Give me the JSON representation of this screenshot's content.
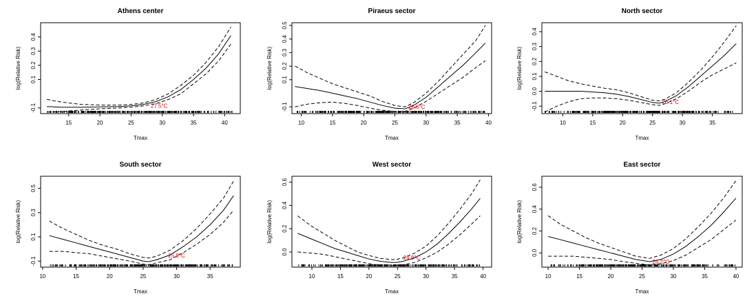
{
  "chart_data": [
    {
      "type": "line",
      "title": "Athens center",
      "xlabel": "Tmax",
      "ylabel": "log(Relative Risk)",
      "xlim": [
        10.5,
        42.5
      ],
      "ylim": [
        -0.14,
        0.5
      ],
      "xticks": [
        15,
        20,
        25,
        30,
        35,
        40
      ],
      "yticks": [
        -0.1,
        0.1,
        0.2,
        0.3,
        0.4
      ],
      "grid": false,
      "annotation": {
        "text": "27.5°C",
        "x": 29.5,
        "y": -0.098,
        "color": "#e00000"
      },
      "rug": {
        "from": 11.5,
        "to": 41.2
      },
      "series": [
        {
          "style": "solid",
          "x": [
            11.5,
            14,
            17,
            20,
            23,
            25,
            27,
            29,
            31,
            33,
            35,
            37,
            39,
            41
          ],
          "y": [
            -0.09,
            -0.095,
            -0.095,
            -0.093,
            -0.09,
            -0.085,
            -0.075,
            -0.055,
            -0.02,
            0.03,
            0.1,
            0.18,
            0.28,
            0.41
          ]
        },
        {
          "style": "dashed",
          "x": [
            11.5,
            14,
            17,
            20,
            23,
            25,
            27,
            29,
            31,
            33,
            35,
            37,
            39,
            41
          ],
          "y": [
            -0.04,
            -0.06,
            -0.075,
            -0.08,
            -0.08,
            -0.075,
            -0.065,
            -0.04,
            0.0,
            0.06,
            0.13,
            0.22,
            0.33,
            0.47
          ]
        },
        {
          "style": "dashed",
          "x": [
            11.5,
            14,
            17,
            20,
            23,
            25,
            27,
            29,
            31,
            33,
            35,
            37,
            39,
            41
          ],
          "y": [
            -0.13,
            -0.125,
            -0.115,
            -0.106,
            -0.1,
            -0.095,
            -0.085,
            -0.07,
            -0.04,
            0.0,
            0.07,
            0.14,
            0.23,
            0.35
          ]
        }
      ]
    },
    {
      "type": "line",
      "title": "Piraeus sector",
      "xlabel": "Tmax",
      "ylabel": "log(Relative Risk)",
      "xlim": [
        8.5,
        40.5
      ],
      "ylim": [
        -0.15,
        0.52
      ],
      "xticks": [
        10,
        15,
        20,
        25,
        30,
        35,
        40
      ],
      "yticks": [
        -0.1,
        0.1,
        0.2,
        0.3,
        0.4,
        0.5
      ],
      "grid": false,
      "annotation": {
        "text": "26.6°C",
        "x": 28.5,
        "y": -0.115,
        "color": "#e00000"
      },
      "rug": {
        "from": 9,
        "to": 39.5
      },
      "series": [
        {
          "style": "solid",
          "x": [
            9,
            11,
            13,
            15,
            17,
            19,
            21,
            23,
            25,
            26.6,
            28,
            30,
            32,
            34,
            36,
            38,
            39.5
          ],
          "y": [
            0.05,
            0.035,
            0.02,
            0.0,
            -0.02,
            -0.04,
            -0.065,
            -0.09,
            -0.11,
            -0.115,
            -0.09,
            -0.03,
            0.05,
            0.13,
            0.21,
            0.3,
            0.37
          ]
        },
        {
          "style": "dashed",
          "x": [
            9,
            11,
            13,
            15,
            17,
            19,
            21,
            23,
            25,
            26.6,
            28,
            30,
            32,
            34,
            36,
            38,
            39.5
          ],
          "y": [
            0.2,
            0.15,
            0.11,
            0.07,
            0.04,
            0.01,
            -0.02,
            -0.06,
            -0.09,
            -0.1,
            -0.07,
            0.0,
            0.09,
            0.19,
            0.29,
            0.39,
            0.5
          ]
        },
        {
          "style": "dashed",
          "x": [
            9,
            11,
            13,
            15,
            17,
            19,
            21,
            23,
            25,
            26.6,
            28,
            30,
            32,
            34,
            36,
            38,
            39.5
          ],
          "y": [
            -0.1,
            -0.08,
            -0.07,
            -0.065,
            -0.075,
            -0.09,
            -0.11,
            -0.125,
            -0.135,
            -0.135,
            -0.11,
            -0.06,
            0.0,
            0.06,
            0.12,
            0.19,
            0.24
          ]
        }
      ]
    },
    {
      "type": "line",
      "title": "North sector",
      "xlabel": "Tmax",
      "ylabel": "log(Relative Risk)",
      "xlim": [
        6.5,
        40
      ],
      "ylim": [
        -0.15,
        0.46
      ],
      "xticks": [
        10,
        15,
        20,
        25,
        30,
        35
      ],
      "yticks": [
        -0.1,
        0.0,
        0.1,
        0.2,
        0.3,
        0.4
      ],
      "grid": false,
      "annotation": {
        "text": "26.1°C",
        "x": 28,
        "y": -0.085,
        "color": "#e00000"
      },
      "rug": {
        "from": 7,
        "to": 39
      },
      "series": [
        {
          "style": "solid",
          "x": [
            7,
            9,
            11,
            13,
            15,
            17,
            19,
            21,
            23,
            25,
            26.1,
            27,
            29,
            31,
            33,
            35,
            37,
            39
          ],
          "y": [
            0.0,
            0.0,
            0.0,
            0.0,
            -0.005,
            -0.01,
            -0.02,
            -0.035,
            -0.055,
            -0.075,
            -0.08,
            -0.07,
            -0.03,
            0.03,
            0.1,
            0.17,
            0.24,
            0.32
          ]
        },
        {
          "style": "dashed",
          "x": [
            7,
            9,
            11,
            13,
            15,
            17,
            19,
            21,
            23,
            25,
            26.1,
            27,
            29,
            31,
            33,
            35,
            37,
            39
          ],
          "y": [
            0.13,
            0.1,
            0.07,
            0.05,
            0.035,
            0.02,
            0.01,
            -0.01,
            -0.035,
            -0.06,
            -0.065,
            -0.055,
            -0.01,
            0.06,
            0.14,
            0.23,
            0.33,
            0.44
          ]
        },
        {
          "style": "dashed",
          "x": [
            7,
            9,
            11,
            13,
            15,
            17,
            19,
            21,
            23,
            25,
            26.1,
            27,
            29,
            31,
            33,
            35,
            37,
            39
          ],
          "y": [
            -0.14,
            -0.1,
            -0.07,
            -0.05,
            -0.045,
            -0.045,
            -0.05,
            -0.06,
            -0.075,
            -0.09,
            -0.095,
            -0.085,
            -0.05,
            0.0,
            0.06,
            0.11,
            0.15,
            0.19
          ]
        }
      ]
    },
    {
      "type": "line",
      "title": "South sector",
      "xlabel": "Tmax",
      "ylabel": "log(Relative Risk)",
      "xlim": [
        9.7,
        39.5
      ],
      "ylim": [
        -0.15,
        0.6
      ],
      "xticks": [
        10,
        15,
        20,
        25,
        30,
        35
      ],
      "yticks": [
        -0.1,
        0.1,
        0.3,
        0.5
      ],
      "grid": false,
      "annotation": {
        "text": "25.8°C",
        "x": 30,
        "y": -0.07,
        "color": "#e00000"
      },
      "rug": {
        "from": 11,
        "to": 38.5
      },
      "series": [
        {
          "style": "solid",
          "x": [
            11,
            13,
            15,
            17,
            19,
            21,
            23,
            25,
            25.8,
            27,
            29,
            31,
            33,
            35,
            37,
            38.5
          ],
          "y": [
            0.11,
            0.08,
            0.05,
            0.02,
            -0.01,
            -0.04,
            -0.07,
            -0.1,
            -0.105,
            -0.09,
            -0.05,
            0.02,
            0.1,
            0.2,
            0.32,
            0.44
          ]
        },
        {
          "style": "dashed",
          "x": [
            11,
            13,
            15,
            17,
            19,
            21,
            23,
            25,
            25.8,
            27,
            29,
            31,
            33,
            35,
            37,
            38.5
          ],
          "y": [
            0.23,
            0.17,
            0.12,
            0.07,
            0.03,
            0.0,
            -0.04,
            -0.07,
            -0.075,
            -0.06,
            -0.01,
            0.07,
            0.17,
            0.29,
            0.42,
            0.56
          ]
        },
        {
          "style": "dashed",
          "x": [
            11,
            13,
            15,
            17,
            19,
            21,
            23,
            25,
            25.8,
            27,
            29,
            31,
            33,
            35,
            37,
            38.5
          ],
          "y": [
            -0.02,
            -0.02,
            -0.03,
            -0.04,
            -0.06,
            -0.08,
            -0.1,
            -0.125,
            -0.13,
            -0.115,
            -0.09,
            -0.03,
            0.04,
            0.12,
            0.22,
            0.32
          ]
        }
      ]
    },
    {
      "type": "line",
      "title": "West sector",
      "xlabel": "Tmax",
      "ylabel": "log(Relative Risk)",
      "xlim": [
        6.5,
        41.5
      ],
      "ylim": [
        -0.13,
        0.65
      ],
      "xticks": [
        10,
        15,
        20,
        25,
        30,
        35,
        40
      ],
      "yticks": [
        0.0,
        0.2,
        0.4,
        0.6
      ],
      "grid": false,
      "annotation": {
        "text": "24.8°C",
        "x": 27.5,
        "y": -0.065,
        "color": "#e00000"
      },
      "rug": {
        "from": 7.5,
        "to": 39.5
      },
      "series": [
        {
          "style": "solid",
          "x": [
            7.5,
            10,
            12,
            14,
            16,
            18,
            20,
            22,
            24,
            24.8,
            26,
            28,
            30,
            32,
            34,
            36,
            38,
            39.5
          ],
          "y": [
            0.16,
            0.11,
            0.07,
            0.03,
            0.0,
            -0.03,
            -0.06,
            -0.08,
            -0.09,
            -0.09,
            -0.08,
            -0.05,
            0.0,
            0.07,
            0.16,
            0.26,
            0.37,
            0.46
          ]
        },
        {
          "style": "dashed",
          "x": [
            7.5,
            10,
            12,
            14,
            16,
            18,
            20,
            22,
            24,
            24.8,
            26,
            28,
            30,
            32,
            34,
            36,
            38,
            39.5
          ],
          "y": [
            0.31,
            0.22,
            0.16,
            0.1,
            0.05,
            0.0,
            -0.03,
            -0.055,
            -0.065,
            -0.065,
            -0.05,
            -0.01,
            0.05,
            0.14,
            0.25,
            0.37,
            0.5,
            0.62
          ]
        },
        {
          "style": "dashed",
          "x": [
            7.5,
            10,
            12,
            14,
            16,
            18,
            20,
            22,
            24,
            24.8,
            26,
            28,
            30,
            32,
            34,
            36,
            38,
            39.5
          ],
          "y": [
            0.0,
            -0.01,
            -0.02,
            -0.04,
            -0.06,
            -0.08,
            -0.1,
            -0.115,
            -0.12,
            -0.115,
            -0.11,
            -0.09,
            -0.05,
            0.0,
            0.07,
            0.15,
            0.24,
            0.31
          ]
        }
      ]
    },
    {
      "type": "line",
      "title": "East sector",
      "xlabel": "Tmax",
      "ylabel": "log(Relative Risk)",
      "xlim": [
        9,
        41
      ],
      "ylim": [
        -0.13,
        0.7
      ],
      "xticks": [
        10,
        15,
        20,
        25,
        30,
        35,
        40
      ],
      "yticks": [
        0.0,
        0.2,
        0.4,
        0.6
      ],
      "grid": false,
      "annotation": {
        "text": "26.2°C",
        "x": 28,
        "y": -0.1,
        "color": "#e00000"
      },
      "rug": {
        "from": 10,
        "to": 40
      },
      "series": [
        {
          "style": "solid",
          "x": [
            10,
            12,
            14,
            16,
            18,
            20,
            22,
            24,
            26.2,
            28,
            30,
            32,
            34,
            36,
            38,
            40
          ],
          "y": [
            0.15,
            0.12,
            0.09,
            0.06,
            0.03,
            0.0,
            -0.03,
            -0.06,
            -0.08,
            -0.06,
            -0.01,
            0.06,
            0.15,
            0.25,
            0.37,
            0.5
          ]
        },
        {
          "style": "dashed",
          "x": [
            10,
            12,
            14,
            16,
            18,
            20,
            22,
            24,
            26.2,
            28,
            30,
            32,
            34,
            36,
            38,
            40
          ],
          "y": [
            0.34,
            0.26,
            0.2,
            0.14,
            0.09,
            0.05,
            0.01,
            -0.03,
            -0.05,
            -0.02,
            0.04,
            0.13,
            0.24,
            0.36,
            0.5,
            0.66
          ]
        },
        {
          "style": "dashed",
          "x": [
            10,
            12,
            14,
            16,
            18,
            20,
            22,
            24,
            26.2,
            28,
            30,
            32,
            34,
            36,
            38,
            40
          ],
          "y": [
            -0.03,
            -0.03,
            -0.03,
            -0.04,
            -0.05,
            -0.06,
            -0.08,
            -0.095,
            -0.11,
            -0.1,
            -0.07,
            -0.02,
            0.05,
            0.12,
            0.21,
            0.3
          ]
        }
      ]
    }
  ]
}
